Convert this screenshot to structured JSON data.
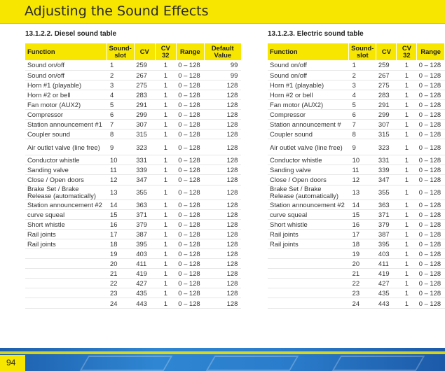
{
  "page": {
    "title": "Adjusting the Sound Effects",
    "page_number": "94"
  },
  "diesel": {
    "heading": "13.1.2.2. Diesel sound table",
    "headers": {
      "function": "Function",
      "slot_1": "Sound-",
      "slot_2": "slot",
      "cv": "CV",
      "cv32": "CV 32",
      "range": "Range",
      "default_1": "Default",
      "default_2": "Value"
    },
    "rows": [
      {
        "function": "Sound on/off",
        "slot": "1",
        "cv": "259",
        "cv32": "1",
        "range": "0 – 128",
        "default": "99"
      },
      {
        "function": "Sound on/off",
        "slot": "2",
        "cv": "267",
        "cv32": "1",
        "range": "0 – 128",
        "default": "99"
      },
      {
        "function": "Horn  #1 (playable)",
        "slot": "3",
        "cv": "275",
        "cv32": "1",
        "range": "0 – 128",
        "default": "128"
      },
      {
        "function": "Horn  #2 or bell",
        "slot": "4",
        "cv": "283",
        "cv32": "1",
        "range": "0 – 128",
        "default": "128"
      },
      {
        "function": "Fan motor (AUX2)",
        "slot": "5",
        "cv": "291",
        "cv32": "1",
        "range": "0 – 128",
        "default": "128"
      },
      {
        "function": "Compressor",
        "slot": "6",
        "cv": "299",
        "cv32": "1",
        "range": "0 – 128",
        "default": "128"
      },
      {
        "function": "Station announcement #1",
        "slot": "7",
        "cv": "307",
        "cv32": "1",
        "range": "0 – 128",
        "default": "128"
      },
      {
        "function": "Coupler sound",
        "slot": "8",
        "cv": "315",
        "cv32": "1",
        "range": "0 – 128",
        "default": "128"
      },
      {
        "function": "Air outlet valve (line free)",
        "slot": "9",
        "cv": "323",
        "cv32": "1",
        "range": "0 – 128",
        "default": "128"
      },
      {
        "function": "Conductor whistle",
        "slot": "10",
        "cv": "331",
        "cv32": "1",
        "range": "0 – 128",
        "default": "128"
      },
      {
        "function": "Sanding valve",
        "slot": "11",
        "cv": "339",
        "cv32": "1",
        "range": "0 – 128",
        "default": "128"
      },
      {
        "function": "Close / Open doors",
        "slot": "12",
        "cv": "347",
        "cv32": "1",
        "range": "0 – 128",
        "default": "128"
      },
      {
        "function": "Brake Set / Brake Release (automatically)",
        "slot": "13",
        "cv": "355",
        "cv32": "1",
        "range": "0 – 128",
        "default": "128"
      },
      {
        "function": "Station announcement #2",
        "slot": "14",
        "cv": "363",
        "cv32": "1",
        "range": "0 – 128",
        "default": "128"
      },
      {
        "function": "curve squeal",
        "slot": "15",
        "cv": "371",
        "cv32": "1",
        "range": "0 – 128",
        "default": "128"
      },
      {
        "function": "Short whistle",
        "slot": "16",
        "cv": "379",
        "cv32": "1",
        "range": "0 – 128",
        "default": "128"
      },
      {
        "function": "Rail joints",
        "slot": "17",
        "cv": "387",
        "cv32": "1",
        "range": "0 – 128",
        "default": "128"
      },
      {
        "function": "Rail joints",
        "slot": "18",
        "cv": "395",
        "cv32": "1",
        "range": "0 – 128",
        "default": "128"
      },
      {
        "function": "",
        "slot": "19",
        "cv": "403",
        "cv32": "1",
        "range": "0 – 128",
        "default": "128"
      },
      {
        "function": "",
        "slot": "20",
        "cv": "411",
        "cv32": "1",
        "range": "0 – 128",
        "default": "128"
      },
      {
        "function": "",
        "slot": "21",
        "cv": "419",
        "cv32": "1",
        "range": "0 – 128",
        "default": "128"
      },
      {
        "function": "",
        "slot": "22",
        "cv": "427",
        "cv32": "1",
        "range": "0 – 128",
        "default": "128"
      },
      {
        "function": "",
        "slot": "23",
        "cv": "435",
        "cv32": "1",
        "range": "0 – 128",
        "default": "128"
      },
      {
        "function": "",
        "slot": "24",
        "cv": "443",
        "cv32": "1",
        "range": "0 – 128",
        "default": "128"
      }
    ]
  },
  "electric": {
    "heading": "13.1.2.3. Electric sound table",
    "headers": {
      "function": "Function",
      "slot_1": "Sound-",
      "slot_2": "slot",
      "cv": "CV",
      "cv32": "CV 32",
      "range": "Range"
    },
    "rows": [
      {
        "function": "Sound on/off",
        "slot": "1",
        "cv": "259",
        "cv32": "1",
        "range": "0 – 128"
      },
      {
        "function": "Sound on/off",
        "slot": "2",
        "cv": "267",
        "cv32": "1",
        "range": "0 – 128"
      },
      {
        "function": "Horn  #1 (playable)",
        "slot": "3",
        "cv": "275",
        "cv32": "1",
        "range": "0 – 128"
      },
      {
        "function": "Horn  #2 or bell",
        "slot": "4",
        "cv": "283",
        "cv32": "1",
        "range": "0 – 128"
      },
      {
        "function": "Fan motor (AUX2)",
        "slot": "5",
        "cv": "291",
        "cv32": "1",
        "range": "0 – 128"
      },
      {
        "function": "Compressor",
        "slot": "6",
        "cv": "299",
        "cv32": "1",
        "range": "0 – 128"
      },
      {
        "function": "Station announcement #",
        "slot": "7",
        "cv": "307",
        "cv32": "1",
        "range": "0 – 128"
      },
      {
        "function": "Coupler sound",
        "slot": "8",
        "cv": "315",
        "cv32": "1",
        "range": "0 – 128"
      },
      {
        "function": "Air outlet valve (line free)",
        "slot": "9",
        "cv": "323",
        "cv32": "1",
        "range": "0 – 128"
      },
      {
        "function": "Conductor whistle",
        "slot": "10",
        "cv": "331",
        "cv32": "1",
        "range": "0 – 128"
      },
      {
        "function": "Sanding valve",
        "slot": "11",
        "cv": "339",
        "cv32": "1",
        "range": "0 – 128"
      },
      {
        "function": "Close / Open doors",
        "slot": "12",
        "cv": "347",
        "cv32": "1",
        "range": "0 – 128"
      },
      {
        "function": "Brake Set / Brake Release (automatically)",
        "slot": "13",
        "cv": "355",
        "cv32": "1",
        "range": "0 – 128"
      },
      {
        "function": "Station announcement #2",
        "slot": "14",
        "cv": "363",
        "cv32": "1",
        "range": "0 – 128"
      },
      {
        "function": "curve squeal",
        "slot": "15",
        "cv": "371",
        "cv32": "1",
        "range": "0 – 128"
      },
      {
        "function": "Short whistle",
        "slot": "16",
        "cv": "379",
        "cv32": "1",
        "range": "0 – 128"
      },
      {
        "function": "Rail joints",
        "slot": "17",
        "cv": "387",
        "cv32": "1",
        "range": "0 – 128"
      },
      {
        "function": "Rail joints",
        "slot": "18",
        "cv": "395",
        "cv32": "1",
        "range": "0 – 128"
      },
      {
        "function": "",
        "slot": "19",
        "cv": "403",
        "cv32": "1",
        "range": "0 – 128"
      },
      {
        "function": "",
        "slot": "20",
        "cv": "411",
        "cv32": "1",
        "range": "0 – 128"
      },
      {
        "function": "",
        "slot": "21",
        "cv": "419",
        "cv32": "1",
        "range": "0 – 128"
      },
      {
        "function": "",
        "slot": "22",
        "cv": "427",
        "cv32": "1",
        "range": "0 – 128"
      },
      {
        "function": "",
        "slot": "23",
        "cv": "435",
        "cv32": "1",
        "range": "0 – 128"
      },
      {
        "function": "",
        "slot": "24",
        "cv": "443",
        "cv32": "1",
        "range": "0 – 128"
      }
    ]
  },
  "colors": {
    "accent_yellow": "#f7e600",
    "footer_blue": "#2a7ccb"
  }
}
